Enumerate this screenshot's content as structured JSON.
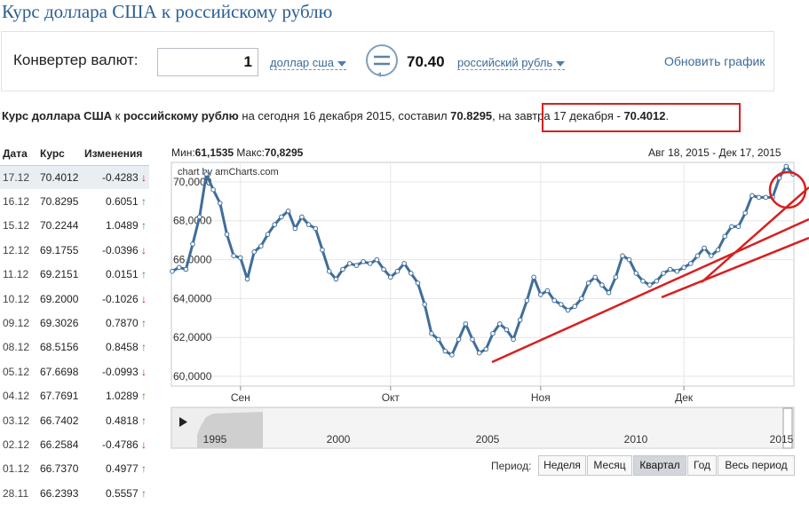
{
  "title": "Курс доллара США к российскому рублю",
  "converter": {
    "label": "Конвертер валют:",
    "amount": "1",
    "from_currency": "доллар сша",
    "result": "70.40",
    "to_currency": "российский рубль",
    "refresh_label": "Обновить график"
  },
  "summary": {
    "p1": "Курс доллара США",
    "p2": " к ",
    "p3": "российскому рублю",
    "p4": " на сегодня 16 декабря 2015, составил ",
    "p5": "70.8295",
    "p6": ", на завтра 17 декабря - ",
    "p7": "70.4012",
    "p8": "."
  },
  "table": {
    "headers": [
      "Дата",
      "Курс",
      "Изменения"
    ],
    "rows": [
      {
        "date": "17.12",
        "rate": "70.4012",
        "change": "-0.4283",
        "dir": "down"
      },
      {
        "date": "16.12",
        "rate": "70.8295",
        "change": "0.6051",
        "dir": "up"
      },
      {
        "date": "15.12",
        "rate": "70.2244",
        "change": "1.0489",
        "dir": "up"
      },
      {
        "date": "12.12",
        "rate": "69.1755",
        "change": "-0.0396",
        "dir": "down"
      },
      {
        "date": "11.12",
        "rate": "69.2151",
        "change": "0.0151",
        "dir": "up"
      },
      {
        "date": "10.12",
        "rate": "69.2000",
        "change": "-0.1026",
        "dir": "down"
      },
      {
        "date": "09.12",
        "rate": "69.3026",
        "change": "0.7870",
        "dir": "up"
      },
      {
        "date": "08.12",
        "rate": "68.5156",
        "change": "0.8458",
        "dir": "up"
      },
      {
        "date": "05.12",
        "rate": "67.6698",
        "change": "-0.0993",
        "dir": "down"
      },
      {
        "date": "04.12",
        "rate": "67.7691",
        "change": "1.0289",
        "dir": "up"
      },
      {
        "date": "03.12",
        "rate": "66.7402",
        "change": "0.4818",
        "dir": "up"
      },
      {
        "date": "02.12",
        "rate": "66.2584",
        "change": "-0.4786",
        "dir": "down"
      },
      {
        "date": "01.12",
        "rate": "66.7370",
        "change": "0.4977",
        "dir": "up"
      },
      {
        "date": "28.11",
        "rate": "66.2393",
        "change": "0.5557",
        "dir": "up"
      }
    ]
  },
  "chart": {
    "minmax_min_label": "Мин:",
    "minmax_min": "61,1535",
    "minmax_max_label": " Макс:",
    "minmax_max": "70,8295",
    "date_range": "Авг 18, 2015 - Дек 17, 2015",
    "credit": "chart by amCharts.com",
    "nav_years": [
      "1995",
      "2000",
      "2005",
      "2010",
      "2015"
    ],
    "period_label": "Период:",
    "period_buttons": [
      "Неделя",
      "Месяц",
      "Квартал",
      "Год",
      "Весь период"
    ],
    "active_period": "Квартал"
  },
  "chart_data": {
    "type": "line",
    "y_tick_labels": [
      "60,0000",
      "62,0000",
      "64,0000",
      "66,0000",
      "68,0000",
      "70,0000"
    ],
    "ylim": [
      59.5,
      71.0
    ],
    "x_tick_labels": [
      "Сен",
      "Окт",
      "Ноя",
      "Дек"
    ],
    "series": [
      {
        "values": [
          65.4,
          65.6,
          65.5,
          66.8,
          68.2,
          70.4,
          69.6,
          68.9,
          67.3,
          66.2,
          66.1,
          65.0,
          66.4,
          66.7,
          67.3,
          67.8,
          68.2,
          68.5,
          67.6,
          68.2,
          67.8,
          67.6,
          66.5,
          65.4,
          65.0,
          65.5,
          65.8,
          65.7,
          65.9,
          65.8,
          66.0,
          65.5,
          65.1,
          65.4,
          65.8,
          65.3,
          64.8,
          63.7,
          62.2,
          61.9,
          61.3,
          61.1,
          61.9,
          62.7,
          61.9,
          61.2,
          61.4,
          62.2,
          62.7,
          62.4,
          61.9,
          62.9,
          63.9,
          65.1,
          64.2,
          64.4,
          63.9,
          63.7,
          63.4,
          63.6,
          64.0,
          64.8,
          65.1,
          64.7,
          64.3,
          65.1,
          66.2,
          66.0,
          65.3,
          64.9,
          64.7,
          64.9,
          65.3,
          65.5,
          65.4,
          65.6,
          65.8,
          66.2,
          66.6,
          66.2,
          66.5,
          67.2,
          67.7,
          67.7,
          68.4,
          69.3,
          69.2,
          69.2,
          69.2,
          70.2,
          70.8,
          70.4
        ]
      }
    ],
    "grid": true
  }
}
